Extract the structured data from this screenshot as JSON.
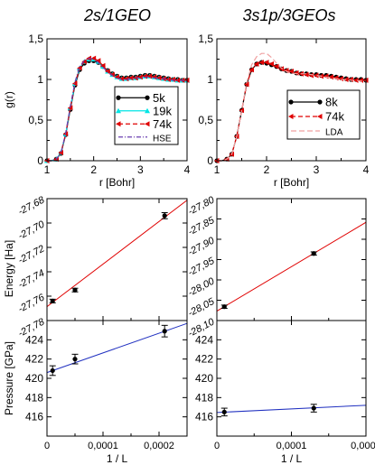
{
  "chart_data": [
    {
      "id": "gr_left",
      "type": "line",
      "title": "2s/1GEO",
      "xlabel": "r [Bohr]",
      "ylabel": "g(r)",
      "xlim": [
        1,
        4
      ],
      "ylim": [
        0,
        1.5
      ],
      "xticks": [
        "1",
        "2",
        "3",
        "4"
      ],
      "yticks": [
        "0",
        "0,5",
        "1",
        "1,5"
      ],
      "legend_position": "center-right",
      "series": [
        {
          "name": "5k",
          "color": "#000000",
          "marker": "circle",
          "dash": "",
          "x": [
            1.0,
            1.1,
            1.2,
            1.3,
            1.4,
            1.5,
            1.6,
            1.7,
            1.8,
            1.9,
            2.0,
            2.1,
            2.2,
            2.3,
            2.4,
            2.5,
            2.6,
            2.7,
            2.8,
            2.9,
            3.0,
            3.1,
            3.2,
            3.3,
            3.4,
            3.5,
            3.6,
            3.7,
            3.8,
            3.9,
            4.0
          ],
          "y": [
            0.0,
            0.0,
            0.02,
            0.09,
            0.32,
            0.63,
            0.93,
            1.12,
            1.2,
            1.23,
            1.23,
            1.21,
            1.16,
            1.11,
            1.07,
            1.04,
            1.02,
            1.02,
            1.03,
            1.03,
            1.04,
            1.05,
            1.05,
            1.04,
            1.03,
            1.02,
            1.01,
            1.0,
            1.0,
            0.99,
            0.99
          ]
        },
        {
          "name": "19k",
          "color": "#00e5e5",
          "marker": "triangle",
          "dash": "",
          "x": [
            1.0,
            1.1,
            1.2,
            1.3,
            1.4,
            1.5,
            1.6,
            1.7,
            1.8,
            1.9,
            2.0,
            2.1,
            2.2,
            2.3,
            2.4,
            2.5,
            2.6,
            2.7,
            2.8,
            2.9,
            3.0,
            3.1,
            3.2,
            3.3,
            3.4,
            3.5,
            3.6,
            3.7,
            3.8,
            3.9,
            4.0
          ],
          "y": [
            0.0,
            0.0,
            0.02,
            0.1,
            0.33,
            0.65,
            0.95,
            1.14,
            1.22,
            1.25,
            1.25,
            1.22,
            1.16,
            1.1,
            1.06,
            1.03,
            1.01,
            1.01,
            1.02,
            1.02,
            1.03,
            1.04,
            1.04,
            1.03,
            1.02,
            1.01,
            1.0,
            1.0,
            0.99,
            0.99,
            0.99
          ]
        },
        {
          "name": "74k",
          "color": "#e00000",
          "marker": "triangle-left",
          "dash": "5,3",
          "x": [
            1.0,
            1.1,
            1.2,
            1.3,
            1.4,
            1.5,
            1.6,
            1.7,
            1.8,
            1.9,
            2.0,
            2.1,
            2.2,
            2.3,
            2.4,
            2.5,
            2.6,
            2.7,
            2.8,
            2.9,
            3.0,
            3.1,
            3.2,
            3.3,
            3.4,
            3.5,
            3.6,
            3.7,
            3.8,
            3.9,
            4.0
          ],
          "y": [
            0.0,
            0.0,
            0.02,
            0.1,
            0.33,
            0.65,
            0.95,
            1.14,
            1.22,
            1.26,
            1.26,
            1.23,
            1.17,
            1.1,
            1.06,
            1.03,
            1.01,
            1.01,
            1.02,
            1.02,
            1.03,
            1.04,
            1.04,
            1.03,
            1.02,
            1.01,
            1.0,
            1.0,
            0.99,
            0.99,
            0.99
          ]
        },
        {
          "name": "HSE",
          "color": "#6a3fb0",
          "marker": "",
          "dash": "5,2,1,2",
          "x": [
            1.0,
            1.1,
            1.2,
            1.3,
            1.4,
            1.5,
            1.6,
            1.7,
            1.8,
            1.9,
            2.0,
            2.1,
            2.2,
            2.3,
            2.4,
            2.5,
            2.6,
            2.7,
            2.8,
            2.9,
            3.0,
            3.1,
            3.2,
            3.3,
            3.4,
            3.5,
            3.6,
            3.7,
            3.8,
            3.9,
            4.0
          ],
          "y": [
            0.0,
            0.0,
            0.02,
            0.1,
            0.34,
            0.67,
            0.97,
            1.16,
            1.23,
            1.26,
            1.25,
            1.21,
            1.15,
            1.09,
            1.05,
            1.02,
            1.0,
            1.0,
            1.01,
            1.02,
            1.02,
            1.03,
            1.03,
            1.02,
            1.01,
            1.01,
            1.0,
            0.99,
            0.99,
            0.99,
            0.98
          ]
        }
      ]
    },
    {
      "id": "gr_right",
      "type": "line",
      "title": "3s1p/3GEOs",
      "xlabel": "r [Bohr]",
      "ylabel": "",
      "xlim": [
        1,
        4
      ],
      "ylim": [
        0,
        1.5
      ],
      "xticks": [
        "1",
        "2",
        "3",
        "4"
      ],
      "yticks": [
        "0",
        "0,5",
        "1",
        "1,5"
      ],
      "legend_position": "center-right",
      "series": [
        {
          "name": "8k",
          "color": "#000000",
          "marker": "circle",
          "dash": "",
          "x": [
            1.0,
            1.1,
            1.2,
            1.3,
            1.4,
            1.5,
            1.6,
            1.7,
            1.8,
            1.9,
            2.0,
            2.1,
            2.2,
            2.3,
            2.4,
            2.5,
            2.6,
            2.7,
            2.8,
            2.9,
            3.0,
            3.1,
            3.2,
            3.3,
            3.4,
            3.5,
            3.6,
            3.7,
            3.8,
            3.9,
            4.0
          ],
          "y": [
            0.0,
            0.0,
            0.02,
            0.08,
            0.3,
            0.62,
            0.94,
            1.12,
            1.19,
            1.21,
            1.2,
            1.18,
            1.16,
            1.13,
            1.11,
            1.1,
            1.08,
            1.07,
            1.07,
            1.06,
            1.06,
            1.05,
            1.05,
            1.04,
            1.03,
            1.02,
            1.01,
            1.0,
            1.0,
            1.0,
            0.99
          ]
        },
        {
          "name": "74k",
          "color": "#e00000",
          "marker": "triangle-left",
          "dash": "5,3",
          "x": [
            1.0,
            1.1,
            1.2,
            1.3,
            1.4,
            1.5,
            1.6,
            1.7,
            1.8,
            1.9,
            2.0,
            2.1,
            2.2,
            2.3,
            2.4,
            2.5,
            2.6,
            2.7,
            2.8,
            2.9,
            3.0,
            3.1,
            3.2,
            3.3,
            3.4,
            3.5,
            3.6,
            3.7,
            3.8,
            3.9,
            4.0
          ],
          "y": [
            0.0,
            0.0,
            0.02,
            0.08,
            0.3,
            0.62,
            0.94,
            1.12,
            1.19,
            1.21,
            1.21,
            1.19,
            1.16,
            1.13,
            1.11,
            1.1,
            1.08,
            1.07,
            1.06,
            1.05,
            1.05,
            1.04,
            1.04,
            1.03,
            1.02,
            1.01,
            1.0,
            1.0,
            0.99,
            0.99,
            0.99
          ]
        },
        {
          "name": "LDA",
          "color": "#f0a0a0",
          "marker": "",
          "dash": "6,3",
          "x": [
            1.0,
            1.1,
            1.2,
            1.3,
            1.4,
            1.5,
            1.6,
            1.7,
            1.8,
            1.9,
            2.0,
            2.1,
            2.2,
            2.3,
            2.4,
            2.5,
            2.6,
            2.7,
            2.8,
            2.9,
            3.0,
            3.1,
            3.2,
            3.3,
            3.4,
            3.5,
            3.6,
            3.7,
            3.8,
            3.9,
            4.0
          ],
          "y": [
            0.0,
            0.0,
            0.02,
            0.08,
            0.3,
            0.62,
            0.96,
            1.18,
            1.28,
            1.32,
            1.32,
            1.27,
            1.2,
            1.14,
            1.1,
            1.08,
            1.07,
            1.07,
            1.07,
            1.06,
            1.05,
            1.04,
            1.03,
            1.02,
            1.01,
            1.0,
            1.0,
            0.99,
            0.99,
            0.98,
            0.98
          ]
        }
      ]
    },
    {
      "id": "energy_left",
      "type": "scatter",
      "xlabel": "",
      "ylabel": "Energy [Ha]",
      "xlim": [
        0,
        0.00025
      ],
      "ylim": [
        -27.78,
        -27.68
      ],
      "yticks": [
        "-27,68",
        "-27,70",
        "-27,72",
        "-27,74",
        "-27,76",
        "-27,78"
      ],
      "series": [
        {
          "name": "",
          "color": "#000000",
          "marker": "circle-errorbar",
          "x": [
            1e-05,
            5e-05,
            0.00021
          ],
          "y": [
            -27.764,
            -27.755,
            -27.694
          ],
          "err": [
            0.0015,
            0.0015,
            0.0025
          ]
        }
      ],
      "fit": {
        "color": "#e00000",
        "x": [
          0,
          0.00025
        ],
        "y": [
          -27.7686,
          -27.6813
        ]
      }
    },
    {
      "id": "energy_right",
      "type": "scatter",
      "xlabel": "",
      "ylabel": "",
      "xlim": [
        0,
        0.0002
      ],
      "ylim": [
        -28.1,
        -27.8
      ],
      "yticks": [
        "-27,80",
        "-27,85",
        "-27,90",
        "-27,95",
        "-28,00",
        "-28,05",
        "-28,10"
      ],
      "series": [
        {
          "name": "",
          "color": "#000000",
          "marker": "circle-errorbar",
          "x": [
            1e-05,
            0.00013
          ],
          "y": [
            -28.066,
            -27.935
          ],
          "err": [
            0.004,
            0.004
          ]
        }
      ],
      "fit": {
        "color": "#e00000",
        "x": [
          0,
          0.0002
        ],
        "y": [
          -28.0767,
          -27.8583
        ]
      }
    },
    {
      "id": "pressure_left",
      "type": "scatter",
      "xlabel": "1 / L",
      "ylabel": "Pressure [GPa]",
      "xlim": [
        0,
        0.00025
      ],
      "ylim": [
        414,
        426
      ],
      "xticks": [
        "0",
        "0,0001",
        "0,0002"
      ],
      "yticks": [
        "416",
        "418",
        "420",
        "422",
        "424"
      ],
      "series": [
        {
          "name": "",
          "color": "#000000",
          "marker": "circle-errorbar",
          "x": [
            1e-05,
            5e-05,
            0.00021
          ],
          "y": [
            420.8,
            422.0,
            424.9
          ],
          "err": [
            0.5,
            0.5,
            0.6
          ]
        }
      ],
      "fit": {
        "color": "#2030c0",
        "x": [
          0,
          0.00025
        ],
        "y": [
          420.6,
          425.7
        ]
      }
    },
    {
      "id": "pressure_right",
      "type": "scatter",
      "xlabel": "1 / L",
      "ylabel": "",
      "xlim": [
        0,
        0.0002
      ],
      "ylim": [
        414,
        426
      ],
      "xticks": [
        "0",
        "0,0001",
        "0,0002"
      ],
      "yticks": [
        "416",
        "418",
        "420",
        "422",
        "424"
      ],
      "series": [
        {
          "name": "",
          "color": "#000000",
          "marker": "circle-errorbar",
          "x": [
            1e-05,
            0.00013
          ],
          "y": [
            416.5,
            416.9
          ],
          "err": [
            0.4,
            0.4
          ]
        }
      ],
      "fit": {
        "color": "#2030c0",
        "x": [
          0,
          0.0002
        ],
        "y": [
          416.45,
          417.2
        ]
      }
    }
  ]
}
